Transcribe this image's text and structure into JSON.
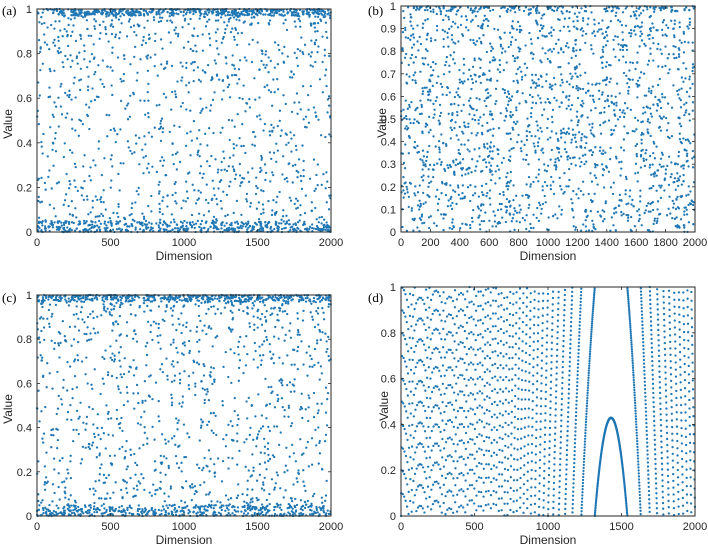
{
  "chart_data": [
    {
      "panel_label": "(a)",
      "type": "scatter",
      "xlabel": "Dimension",
      "ylabel": "Value",
      "xlim": [
        0,
        2000
      ],
      "ylim": [
        0,
        1
      ],
      "xticks": [
        "0",
        "500",
        "1000",
        "1500",
        "2000"
      ],
      "yticks": [
        "0",
        "0.2",
        "0.4",
        "0.6",
        "0.8",
        "1"
      ],
      "color": "#1f77b4",
      "n_points": 2000,
      "pattern": "random-edge-dense"
    },
    {
      "panel_label": "(b)",
      "type": "scatter",
      "xlabel": "Dimension",
      "ylabel": "Value",
      "xlim": [
        0,
        2000
      ],
      "ylim": [
        0,
        1
      ],
      "xticks": [
        "0",
        "200",
        "400",
        "600",
        "800",
        "1000",
        "1200",
        "1400",
        "1600",
        "1800",
        "2000"
      ],
      "yticks": [
        "0",
        "0.1",
        "0.2",
        "0.3",
        "0.4",
        "0.5",
        "0.6",
        "0.7",
        "0.8",
        "0.9",
        "1"
      ],
      "color": "#1f77b4",
      "n_points": 2000,
      "pattern": "random-uniform"
    },
    {
      "panel_label": "(c)",
      "type": "scatter",
      "xlabel": "Dimension",
      "ylabel": "Value",
      "xlim": [
        0,
        2000
      ],
      "ylim": [
        0,
        1
      ],
      "xticks": [
        "0",
        "500",
        "1000",
        "1500",
        "2000"
      ],
      "yticks": [
        "0",
        "0.2",
        "0.4",
        "0.6",
        "0.8",
        "1"
      ],
      "color": "#1f77b4",
      "n_points": 2000,
      "pattern": "random-edge-dense"
    },
    {
      "panel_label": "(d)",
      "type": "scatter",
      "xlabel": "Dimension",
      "ylabel": "Value",
      "xlim": [
        0,
        2000
      ],
      "ylim": [
        0,
        1
      ],
      "xticks": [
        "0",
        "500",
        "1000",
        "1500",
        "2000"
      ],
      "yticks": [
        "0",
        "0.2",
        "0.4",
        "0.6",
        "0.8",
        "1"
      ],
      "color": "#1f77b4",
      "n_points": 2000,
      "pattern": "diagonal-bands",
      "band_slope_start": 0.1,
      "band_slope_end": 0.03
    }
  ]
}
